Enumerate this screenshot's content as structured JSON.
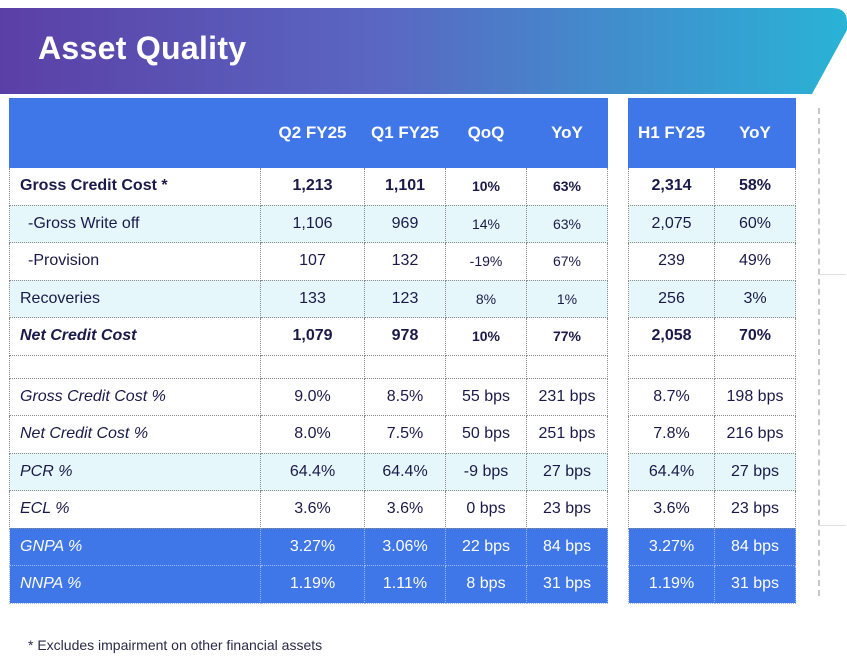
{
  "title": "Asset Quality",
  "main_table": {
    "headers": [
      "",
      "Q2 FY25",
      "Q1 FY25",
      "QoQ",
      "YoY"
    ],
    "rows": [
      {
        "label": "Gross Credit Cost *",
        "values": [
          "1,213",
          "1,101",
          "10%",
          "63%"
        ]
      },
      {
        "label": "-Gross Write off",
        "values": [
          "1,106",
          "969",
          "14%",
          "63%"
        ]
      },
      {
        "label": "-Provision",
        "values": [
          "107",
          "132",
          "-19%",
          "67%"
        ]
      },
      {
        "label": "Recoveries",
        "values": [
          "133",
          "123",
          "8%",
          "1%"
        ]
      },
      {
        "label": "Net Credit Cost",
        "values": [
          "1,079",
          "978",
          "10%",
          "77%"
        ]
      },
      {
        "label": "Gross Credit Cost %",
        "values": [
          "9.0%",
          "8.5%",
          "55 bps",
          "231 bps"
        ]
      },
      {
        "label": "Net Credit Cost %",
        "values": [
          "8.0%",
          "7.5%",
          "50 bps",
          "251 bps"
        ]
      },
      {
        "label": "PCR %",
        "values": [
          "64.4%",
          "64.4%",
          "-9 bps",
          "27 bps"
        ]
      },
      {
        "label": "ECL %",
        "values": [
          "3.6%",
          "3.6%",
          "0 bps",
          "23 bps"
        ]
      },
      {
        "label": "GNPA %",
        "values": [
          "3.27%",
          "3.06%",
          "22 bps",
          "84 bps"
        ]
      },
      {
        "label": "NNPA %",
        "values": [
          "1.19%",
          "1.11%",
          "8 bps",
          "31 bps"
        ]
      }
    ]
  },
  "side_table": {
    "headers": [
      "H1 FY25",
      "YoY"
    ],
    "rows": [
      [
        "2,314",
        "58%"
      ],
      [
        "2,075",
        "60%"
      ],
      [
        "239",
        "49%"
      ],
      [
        "256",
        "3%"
      ],
      [
        "2,058",
        "70%"
      ],
      [
        "8.7%",
        "198 bps"
      ],
      [
        "7.8%",
        "216 bps"
      ],
      [
        "64.4%",
        "27 bps"
      ],
      [
        "3.6%",
        "23 bps"
      ],
      [
        "3.27%",
        "84 bps"
      ],
      [
        "1.19%",
        "31 bps"
      ]
    ]
  },
  "footnote": "* Excludes impairment on other financial assets",
  "colors": {
    "header_blue": "#3f76e8",
    "light_row": "#e6f7fb",
    "banner_start": "#5b3fa6",
    "banner_end": "#29b3d6",
    "text_navy": "#1a1a4a"
  }
}
